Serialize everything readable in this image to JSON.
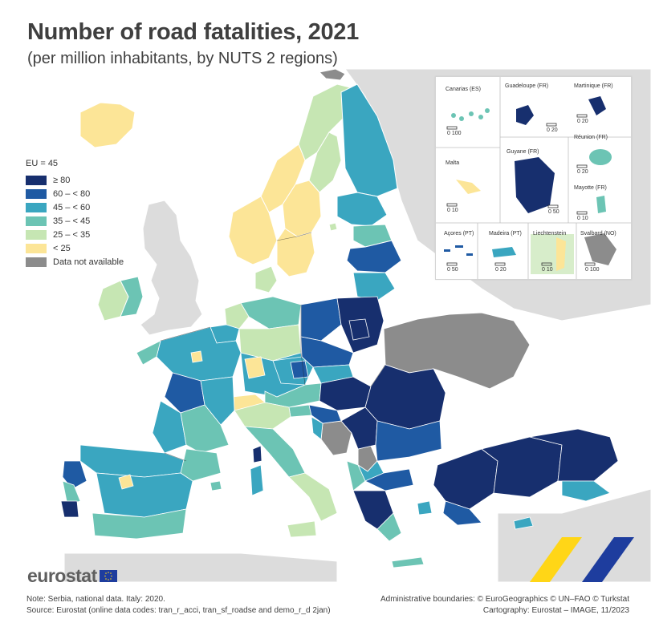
{
  "title": "Number of road fatalities, 2021",
  "subtitle": "(per million inhabitants, by NUTS 2 regions)",
  "legend": {
    "average_label": "EU = 45",
    "classes": [
      {
        "label": "≥ 80",
        "color": "#172f6e"
      },
      {
        "label": "60 – < 80",
        "color": "#1f5aa3"
      },
      {
        "label": "45 – < 60",
        "color": "#3aa6c0"
      },
      {
        "label": "35 – < 45",
        "color": "#6cc4b4"
      },
      {
        "label": "25 – < 35",
        "color": "#c6e6b3"
      },
      {
        "label": "< 25",
        "color": "#fce597"
      },
      {
        "label": "Data not available",
        "color": "#8c8c8c"
      }
    ]
  },
  "insets": {
    "canarias": "Canarias (ES)",
    "guadeloupe": "Guadeloupe (FR)",
    "martinique": "Martinique (FR)",
    "guyane": "Guyane (FR)",
    "reunion": "Réunion (FR)",
    "malta": "Malta",
    "mayotte": "Mayotte (FR)",
    "acores": "Açores (PT)",
    "madeira": "Madeira (PT)",
    "liechtenstein": "Liechtenstein",
    "svalbard": "Svalbard (NO)",
    "scale_canarias": "0   100",
    "scale_guadeloupe": "0   20",
    "scale_martinique": "0   20",
    "scale_guyane": "0   50",
    "scale_reunion": "0   20",
    "scale_malta": "0   10",
    "scale_mayotte": "0   10",
    "scale_acores": "0   50",
    "scale_madeira": "0   20",
    "scale_liechtenstein": "0   10",
    "scale_svalbard": "0 100"
  },
  "logo_text": "eurostat",
  "footer": {
    "note": "Note: Serbia, national data. Italy: 2020.",
    "source": "Source: Eurostat (online data codes: tran_r_acci, tran_sf_roadse and demo_r_d 2jan)",
    "boundaries": "Administrative boundaries: © EuroGeographics © UN–FAO © Turkstat",
    "cartography": "Cartography: Eurostat – IMAGE, 11/2023"
  },
  "colors": {
    "c80": "#172f6e",
    "c60": "#1f5aa3",
    "c45": "#3aa6c0",
    "c35": "#6cc4b4",
    "c25": "#c6e6b3",
    "clt25": "#fce597",
    "cna": "#8c8c8c",
    "land_nonmember": "#dcdcdc",
    "sea": "#ffffff"
  }
}
